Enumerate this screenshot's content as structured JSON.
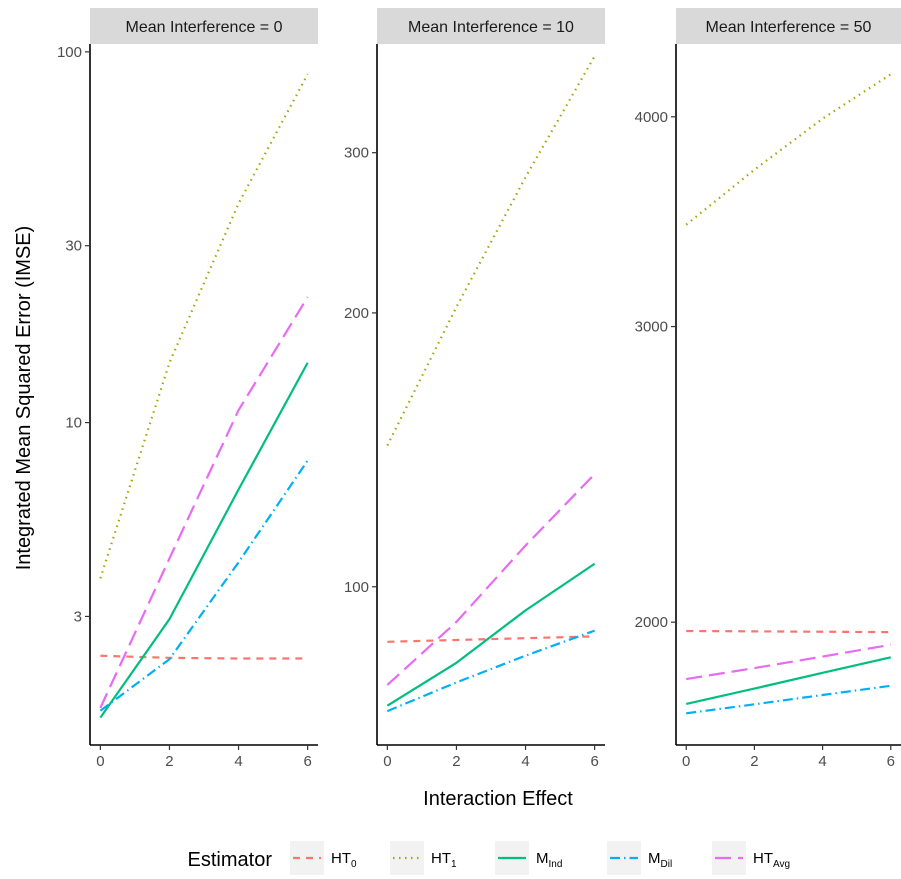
{
  "chart_data": {
    "type": "line",
    "xlabel": "Interaction Effect",
    "ylabel": "Integrated Mean Squared Error (IMSE)",
    "legend_title": "Estimator",
    "legend_position": "bottom",
    "grid": false,
    "series_styles": [
      {
        "key": "HT0",
        "base": "HT",
        "sub": "0",
        "color": "#F8766D",
        "dash": "7,6"
      },
      {
        "key": "HT1",
        "base": "HT",
        "sub": "1",
        "color": "#A3A500",
        "dash": "1.5,4.5"
      },
      {
        "key": "MInd",
        "base": "M",
        "sub": "Ind",
        "color": "#00BF7D",
        "dash": ""
      },
      {
        "key": "MDil",
        "base": "M",
        "sub": "Dil",
        "color": "#00B0F6",
        "dash": "10,4,1.5,4"
      },
      {
        "key": "HTAvg",
        "base": "HT",
        "sub": "Avg",
        "color": "#E76BF3",
        "dash": "16,7"
      }
    ],
    "panels": [
      {
        "title": "Mean Interference = 0",
        "y_scale": "log10",
        "ylim": [
          1.35,
          105
        ],
        "xlim": [
          -0.3,
          6.3
        ],
        "x_ticks": [
          0,
          2,
          4,
          6
        ],
        "y_ticks": [
          3,
          10,
          30,
          100
        ],
        "x": [
          0,
          2,
          4,
          6
        ],
        "series": [
          {
            "key": "HT0",
            "values": [
              2.35,
              2.32,
              2.31,
              2.31
            ]
          },
          {
            "key": "HT1",
            "values": [
              3.8,
              14.5,
              39,
              87
            ]
          },
          {
            "key": "MInd",
            "values": [
              1.6,
              2.95,
              6.6,
              14.5
            ]
          },
          {
            "key": "MDil",
            "values": [
              1.67,
              2.3,
              4.2,
              7.9
            ]
          },
          {
            "key": "HTAvg",
            "values": [
              1.7,
              4.3,
              10.8,
              21.8
            ]
          }
        ]
      },
      {
        "title": "Mean Interference = 10",
        "y_scale": "log10",
        "ylim": [
          67,
          395
        ],
        "xlim": [
          -0.3,
          6.3
        ],
        "x_ticks": [
          0,
          2,
          4,
          6
        ],
        "y_ticks": [
          100,
          200,
          300
        ],
        "x": [
          0,
          2,
          4,
          6
        ],
        "series": [
          {
            "key": "HT0",
            "values": [
              87,
              87.4,
              87.8,
              88.2
            ]
          },
          {
            "key": "HT1",
            "values": [
              143,
              203,
              282,
              383
            ]
          },
          {
            "key": "MInd",
            "values": [
              74,
              82.5,
              94.2,
              106
            ]
          },
          {
            "key": "MDil",
            "values": [
              73,
              78.5,
              84,
              89.5
            ]
          },
          {
            "key": "HTAvg",
            "values": [
              78,
              91.5,
              111,
              133
            ]
          }
        ]
      },
      {
        "title": "Mean Interference = 50",
        "y_scale": "log10",
        "ylim": [
          1690,
          4420
        ],
        "xlim": [
          -0.3,
          6.3
        ],
        "x_ticks": [
          0,
          2,
          4,
          6
        ],
        "y_ticks": [
          2000,
          3000,
          4000
        ],
        "x": [
          0,
          2,
          4,
          6
        ],
        "series": [
          {
            "key": "HT0",
            "values": [
              1976,
              1975,
              1974,
              1973
            ]
          },
          {
            "key": "HT1",
            "values": [
              3450,
              3720,
              3990,
              4240
            ]
          },
          {
            "key": "MInd",
            "values": [
              1788,
              1826,
              1866,
              1906
            ]
          },
          {
            "key": "MDil",
            "values": [
              1765,
              1787,
              1810,
              1833
            ]
          },
          {
            "key": "HTAvg",
            "values": [
              1850,
              1878,
              1908,
              1939
            ]
          }
        ]
      }
    ]
  }
}
